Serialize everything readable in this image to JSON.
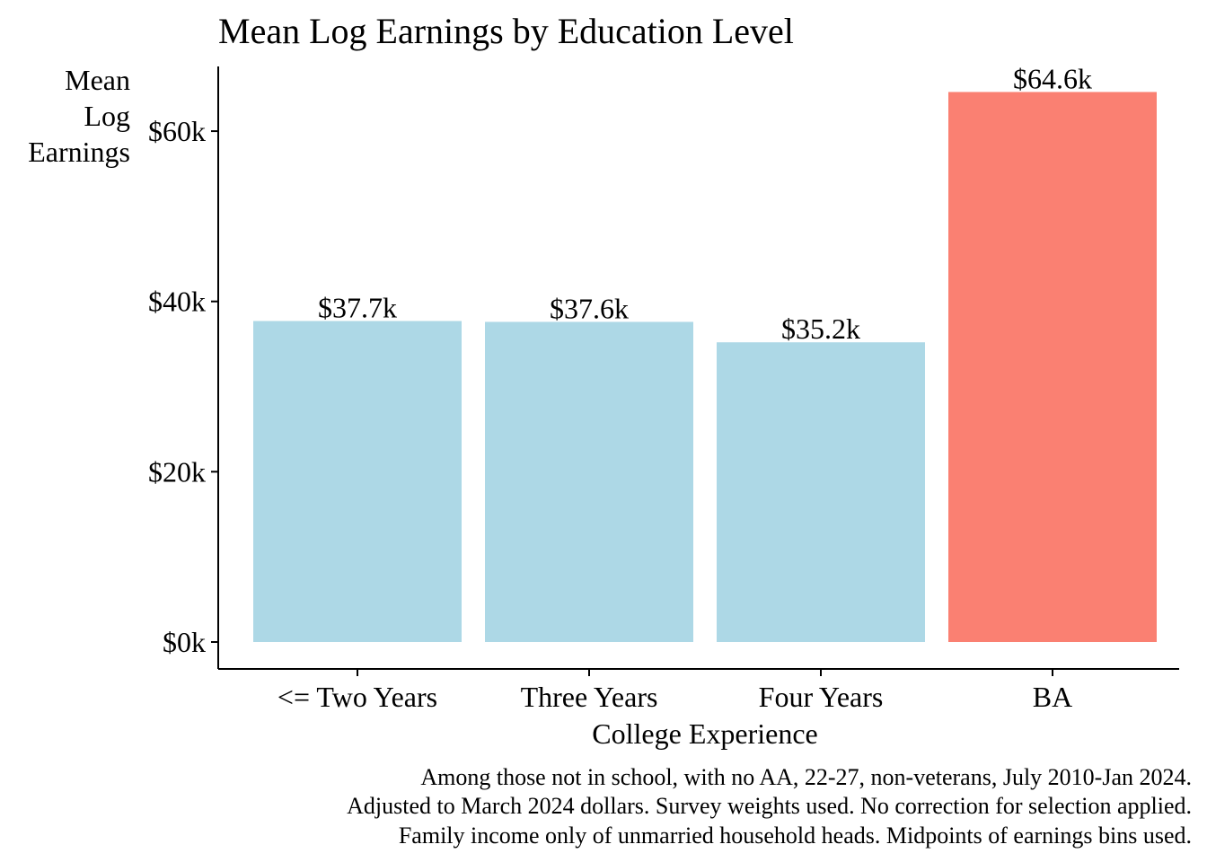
{
  "chart_data": {
    "type": "bar",
    "title": "Mean Log Earnings by Education Level",
    "ylabel_lines": [
      "Mean",
      "Log",
      "Earnings"
    ],
    "xlabel": "College Experience",
    "categories": [
      "<= Two Years",
      "Three Years",
      "Four Years",
      "BA"
    ],
    "values": [
      37.7,
      37.6,
      35.2,
      64.6
    ],
    "value_labels": [
      "$37.7k",
      "$37.6k",
      "$35.2k",
      "$64.6k"
    ],
    "colors": [
      "#ADD8E6",
      "#ADD8E6",
      "#ADD8E6",
      "#FA8072"
    ],
    "ylim": [
      0,
      67.6
    ],
    "yticks": [
      0,
      20,
      40,
      60
    ],
    "ytick_labels": [
      "$0k",
      "$20k",
      "$40k",
      "$60k"
    ],
    "grid": false,
    "caption_lines": [
      "Among those not in school, with no AA, 22-27, non-veterans, July 2010-Jan 2024.",
      "Adjusted to March 2024 dollars. Survey weights used. No correction for selection applied.",
      "Family income only of unmarried household heads. Midpoints of earnings bins used."
    ]
  }
}
